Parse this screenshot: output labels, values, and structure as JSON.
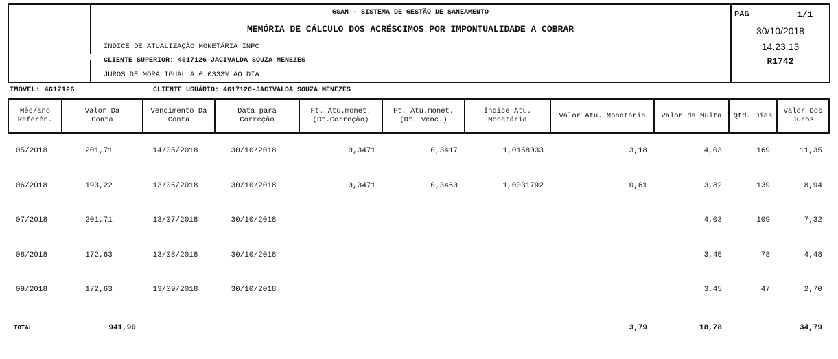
{
  "header": {
    "system": "GSAN - SISTEMA DE GESTÃO DE SANEAMENTO",
    "title": "MEMÓRIA DE CÁLCULO DOS ACRÉSCIMOS POR IMPONTUALIDADE A COBRAR",
    "indice": "ÍNDICE DE ATUALIZAÇÃO MONETÁRIA INPC",
    "cliente_superior": "CLIENTE SUPERIOR: 4617126-JACIVALDA SOUZA MENEZES",
    "juros": "JUROS DE MORA IGUAL A 0.0333% AO DIA",
    "pag_label": "PAG",
    "pag_value": "1/1",
    "date": "30/10/2018",
    "time": "14.23.13",
    "report": "R1742"
  },
  "imovel": "IMÓVEL: 4617126",
  "cliente_usuario": "CLIENTE USUÁRIO: 4617126-JACIVALDA SOUZA MENEZES",
  "columns": [
    [
      "Mês/ano",
      "Referên."
    ],
    [
      "Valor Da",
      "Conta"
    ],
    [
      "Vencimento Da",
      "Conta"
    ],
    [
      "Data para",
      "Correção"
    ],
    [
      "Ft. Atu.monet.",
      "(Dt.Correção)"
    ],
    [
      "Ft. Atu.monet.",
      "(Dt. Venc.)"
    ],
    [
      "Índice Atu.",
      "Monetária"
    ],
    [
      "Valor Atu. Monetária",
      ""
    ],
    [
      "Valor da Multa",
      ""
    ],
    [
      "Qtd. Dias",
      ""
    ],
    [
      "Valor Dos",
      "Juros"
    ]
  ],
  "rows": [
    [
      "05/2018",
      "201,71",
      "14/05/2018",
      "30/10/2018",
      "0,3471",
      "0,3417",
      "1,0158033",
      "3,18",
      "4,03",
      "169",
      "11,35"
    ],
    [
      "06/2018",
      "193,22",
      "13/06/2018",
      "30/10/2018",
      "0,3471",
      "0,3460",
      "1,0031792",
      "0,61",
      "3,82",
      "139",
      "8,94"
    ],
    [
      "07/2018",
      "201,71",
      "13/07/2018",
      "30/10/2018",
      "",
      "",
      "",
      "",
      "4,03",
      "109",
      "7,32"
    ],
    [
      "08/2018",
      "172,63",
      "13/08/2018",
      "30/10/2018",
      "",
      "",
      "",
      "",
      "3,45",
      "78",
      "4,48"
    ],
    [
      "09/2018",
      "172,63",
      "13/09/2018",
      "30/10/2018",
      "",
      "",
      "",
      "",
      "3,45",
      "47",
      "2,70"
    ]
  ],
  "total": [
    "TOTAL",
    "941,90",
    "",
    "",
    "",
    "",
    "",
    "3,79",
    "18,78",
    "",
    "34,79"
  ]
}
